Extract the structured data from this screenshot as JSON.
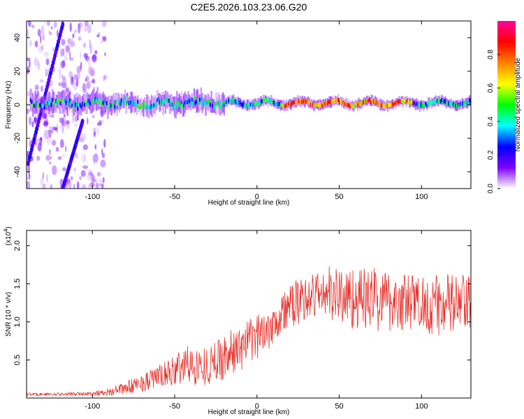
{
  "title": "C2E5.2026.103.23.06.G20",
  "chart_data": [
    {
      "type": "heatmap",
      "xlabel": "Height of straight line (km)",
      "ylabel": "Frequency (Hz)",
      "xlim": [
        -140,
        130
      ],
      "ylim": [
        -50,
        50
      ],
      "x_ticks": [
        -100,
        -50,
        0,
        50,
        100
      ],
      "x_tick_labels": [
        "-100",
        "-50",
        "0",
        "50",
        "100"
      ],
      "y_ticks": [
        -40,
        -20,
        0,
        20,
        40
      ],
      "y_tick_labels": [
        "-40",
        "-20",
        "0",
        "20",
        "40"
      ],
      "colorbar": {
        "label": "Normalized spectral amplitude",
        "range": [
          0,
          1
        ],
        "ticks": [
          0.0,
          0.2,
          0.4,
          0.6,
          0.8
        ],
        "tick_labels": [
          "0.0",
          "0.2",
          "0.4",
          "0.6",
          "0.8"
        ],
        "colormap": [
          "#ffffff",
          "#7f00ff",
          "#0000ff",
          "#00ffff",
          "#00ff00",
          "#ffff00",
          "#ff8000",
          "#ff0000",
          "#ff00a0"
        ]
      },
      "main_ridge": {
        "x_range": [
          -138,
          130
        ],
        "frequency_hz": 1,
        "description_values": {
          "peak_amplitude_segment_km": [
            15,
            95
          ]
        }
      },
      "diagonal_streaks": [
        {
          "x": [
            -139,
            -118
          ],
          "y": [
            -35,
            48
          ]
        },
        {
          "x": [
            -118,
            -106
          ],
          "y": [
            -50,
            -10
          ]
        }
      ],
      "grid": false
    },
    {
      "type": "line",
      "xlabel": "Height of straight line (km)",
      "ylabel": "SNR (10 * v/v)",
      "y_multiplier_label": "(x10",
      "y_multiplier_exp": "4",
      "y_multiplier_close": ")",
      "xlim": [
        -140,
        130
      ],
      "ylim": [
        0,
        2.2
      ],
      "x_ticks": [
        -100,
        -50,
        0,
        50,
        100
      ],
      "x_tick_labels": [
        "-100",
        "-50",
        "0",
        "50",
        "100"
      ],
      "y_ticks": [
        0.5,
        1.0,
        1.5,
        2.0
      ],
      "y_tick_labels": [
        "0.5",
        "1.0",
        "1.5",
        "2.0"
      ],
      "color": "#e8312b",
      "series": [
        {
          "x": [
            -140,
            -120,
            -100,
            -90,
            -80,
            -70,
            -60,
            -50,
            -45,
            -40,
            -30,
            -20,
            -10,
            0,
            10,
            20,
            30,
            40,
            50,
            60,
            70,
            80,
            90,
            100,
            110,
            120,
            130
          ],
          "mean": [
            0.05,
            0.05,
            0.06,
            0.08,
            0.13,
            0.2,
            0.28,
            0.35,
            0.45,
            0.42,
            0.42,
            0.55,
            0.65,
            0.8,
            1.0,
            1.2,
            1.32,
            1.38,
            1.35,
            1.3,
            1.3,
            1.28,
            1.25,
            1.25,
            1.22,
            1.22,
            1.2
          ],
          "spread": [
            0.02,
            0.02,
            0.03,
            0.05,
            0.08,
            0.12,
            0.15,
            0.2,
            0.3,
            0.25,
            0.25,
            0.3,
            0.3,
            0.3,
            0.3,
            0.3,
            0.3,
            0.35,
            0.4,
            0.4,
            0.45,
            0.4,
            0.4,
            0.4,
            0.4,
            0.45,
            0.4
          ]
        }
      ],
      "grid": false
    }
  ]
}
